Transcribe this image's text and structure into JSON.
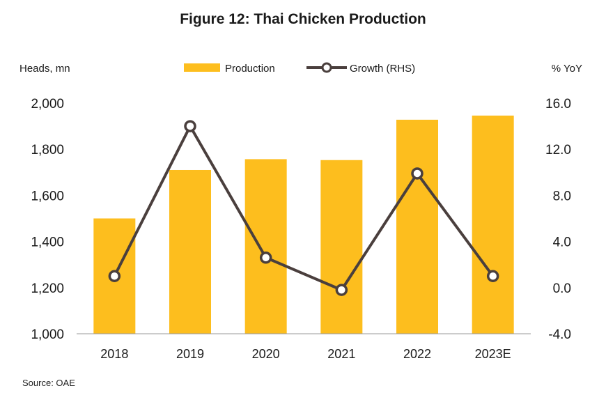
{
  "header": {
    "title": "Figure 12: Thai Chicken Production"
  },
  "footer": {
    "source": "Source: OAE"
  },
  "colors": {
    "bar": "#FDBE1E",
    "line": "#4A3F3D",
    "marker_fill": "#ffffff",
    "axis": "#9a9a9a"
  },
  "chart_data": {
    "type": "bar",
    "title": "Figure 12: Thai Chicken Production",
    "categories": [
      "2018",
      "2019",
      "2020",
      "2021",
      "2022",
      "2023E"
    ],
    "ylabel": "Heads, mn",
    "y2label": "% YoY",
    "ylim": [
      1000,
      2000
    ],
    "y2lim": [
      -4.0,
      16.0
    ],
    "yticks": [
      "1,000",
      "1,200",
      "1,400",
      "1,600",
      "1,800",
      "2,000"
    ],
    "y2ticks": [
      "-4.0",
      "0.0",
      "4.0",
      "8.0",
      "12.0",
      "16.0"
    ],
    "legend": "top-center",
    "grid": false,
    "series": [
      {
        "name": "Production",
        "type": "bar",
        "axis": "left",
        "values": [
          1500,
          1710,
          1757,
          1753,
          1928,
          1946
        ]
      },
      {
        "name": "Growth (RHS)",
        "type": "line",
        "axis": "right",
        "values": [
          1.0,
          14.0,
          2.6,
          -0.2,
          9.9,
          1.0
        ]
      }
    ]
  }
}
